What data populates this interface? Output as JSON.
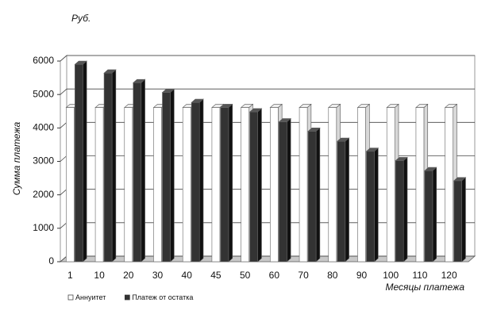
{
  "chart_data": {
    "type": "bar3d",
    "unit_label": "Руб.",
    "y_label": "Сумма платежа",
    "x_label": "Месяцы платежа",
    "categories": [
      "1",
      "10",
      "20",
      "30",
      "40",
      "45",
      "50",
      "60",
      "70",
      "80",
      "90",
      "100",
      "110",
      "120"
    ],
    "series": [
      {
        "name": "Аннуитет",
        "color": "#ffffff",
        "values": [
          4610,
          4610,
          4610,
          4610,
          4610,
          4610,
          4610,
          4610,
          4610,
          4610,
          4610,
          4610,
          4610,
          4610
        ]
      },
      {
        "name": "Платеж от остатка",
        "color": "#333333",
        "values": [
          5900,
          5640,
          5350,
          5060,
          4760,
          4610,
          4480,
          4180,
          3900,
          3600,
          3300,
          3020,
          2720,
          2420
        ]
      }
    ],
    "ylim": [
      0,
      6000
    ],
    "yticks": [
      0,
      1000,
      2000,
      3000,
      4000,
      5000,
      6000
    ],
    "grid": true,
    "legend": "bottom-left"
  }
}
